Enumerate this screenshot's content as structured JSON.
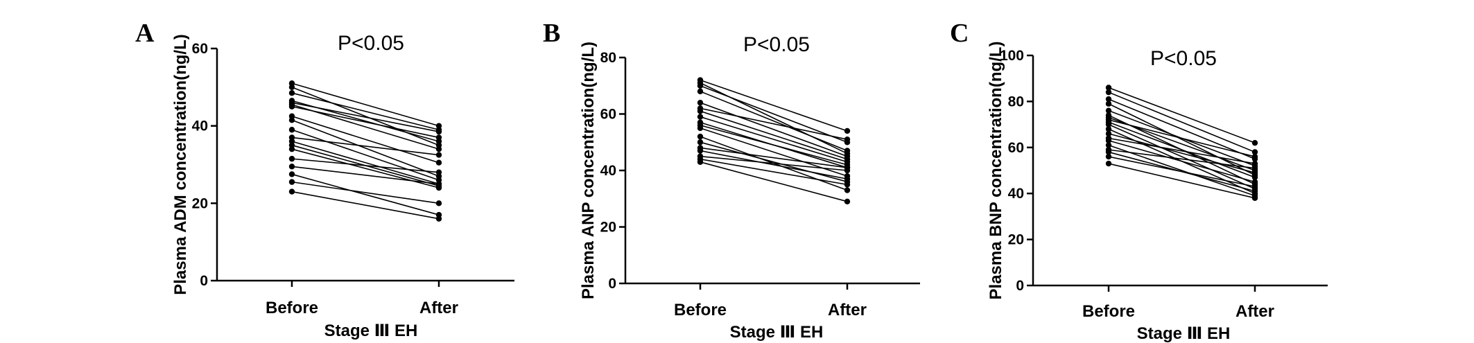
{
  "chart_data": [
    {
      "panel": "A",
      "type": "line",
      "annotation": "P<0.05",
      "ylabel": "Plasma ADM concentration(ng/L)",
      "xlabel": "Stage Ⅲ  EH",
      "categories": [
        "Before",
        "After"
      ],
      "ylim": [
        0,
        60
      ],
      "yticks": [
        0,
        20,
        40,
        60
      ],
      "series": [
        {
          "values": [
            51,
            40
          ]
        },
        {
          "values": [
            50,
            35
          ]
        },
        {
          "values": [
            48.5,
            39
          ]
        },
        {
          "values": [
            46.5,
            36
          ]
        },
        {
          "values": [
            46,
            38.5
          ]
        },
        {
          "values": [
            45.5,
            34
          ]
        },
        {
          "values": [
            45,
            37
          ]
        },
        {
          "values": [
            42.5,
            30.5
          ]
        },
        {
          "values": [
            41.5,
            27
          ]
        },
        {
          "values": [
            39,
            26
          ]
        },
        {
          "values": [
            37,
            32.5
          ]
        },
        {
          "values": [
            36,
            25
          ]
        },
        {
          "values": [
            35,
            24.5
          ]
        },
        {
          "values": [
            34,
            24
          ]
        },
        {
          "values": [
            31.5,
            28
          ]
        },
        {
          "values": [
            29.5,
            25
          ]
        },
        {
          "values": [
            27.5,
            17
          ]
        },
        {
          "values": [
            25.5,
            20
          ]
        },
        {
          "values": [
            23,
            16
          ]
        }
      ]
    },
    {
      "panel": "B",
      "type": "line",
      "annotation": "P<0.05",
      "ylabel": "Plasma ANP concentration(ng/L)",
      "xlabel": "Stage Ⅲ  EH",
      "categories": [
        "Before",
        "After"
      ],
      "ylim": [
        0,
        80
      ],
      "yticks": [
        0,
        20,
        40,
        60,
        80
      ],
      "series": [
        {
          "values": [
            72,
            54
          ]
        },
        {
          "values": [
            71,
            46
          ]
        },
        {
          "values": [
            70,
            50
          ]
        },
        {
          "values": [
            68,
            47
          ]
        },
        {
          "values": [
            64,
            45
          ]
        },
        {
          "values": [
            62,
            51
          ]
        },
        {
          "values": [
            61,
            44
          ]
        },
        {
          "values": [
            59,
            43
          ]
        },
        {
          "values": [
            57,
            41
          ]
        },
        {
          "values": [
            56,
            42
          ]
        },
        {
          "values": [
            55,
            38
          ]
        },
        {
          "values": [
            52,
            33
          ]
        },
        {
          "values": [
            50,
            36
          ]
        },
        {
          "values": [
            48,
            41
          ]
        },
        {
          "values": [
            47,
            37
          ]
        },
        {
          "values": [
            45,
            40
          ]
        },
        {
          "values": [
            44,
            35
          ]
        },
        {
          "values": [
            43,
            29
          ]
        }
      ]
    },
    {
      "panel": "C",
      "type": "line",
      "annotation": "P<0.05",
      "ylabel": "Plasma BNP concentration(ng/L)",
      "xlabel": "Stage Ⅲ  EH",
      "categories": [
        "Before",
        "After"
      ],
      "ylim": [
        0,
        100
      ],
      "yticks": [
        0,
        20,
        40,
        60,
        80,
        100
      ],
      "series": [
        {
          "values": [
            86,
            62
          ]
        },
        {
          "values": [
            84,
            58
          ]
        },
        {
          "values": [
            81,
            55
          ]
        },
        {
          "values": [
            79,
            48
          ]
        },
        {
          "values": [
            76,
            52
          ]
        },
        {
          "values": [
            74,
            44
          ]
        },
        {
          "values": [
            73,
            50
          ]
        },
        {
          "values": [
            72,
            56
          ]
        },
        {
          "values": [
            71,
            47
          ]
        },
        {
          "values": [
            70,
            42
          ]
        },
        {
          "values": [
            68,
            40
          ]
        },
        {
          "values": [
            66,
            49
          ]
        },
        {
          "values": [
            64,
            53
          ]
        },
        {
          "values": [
            63,
            45
          ]
        },
        {
          "values": [
            61,
            39
          ]
        },
        {
          "values": [
            59,
            51
          ]
        },
        {
          "values": [
            58,
            41
          ]
        },
        {
          "values": [
            56,
            43
          ]
        },
        {
          "values": [
            53,
            38
          ]
        }
      ]
    }
  ]
}
